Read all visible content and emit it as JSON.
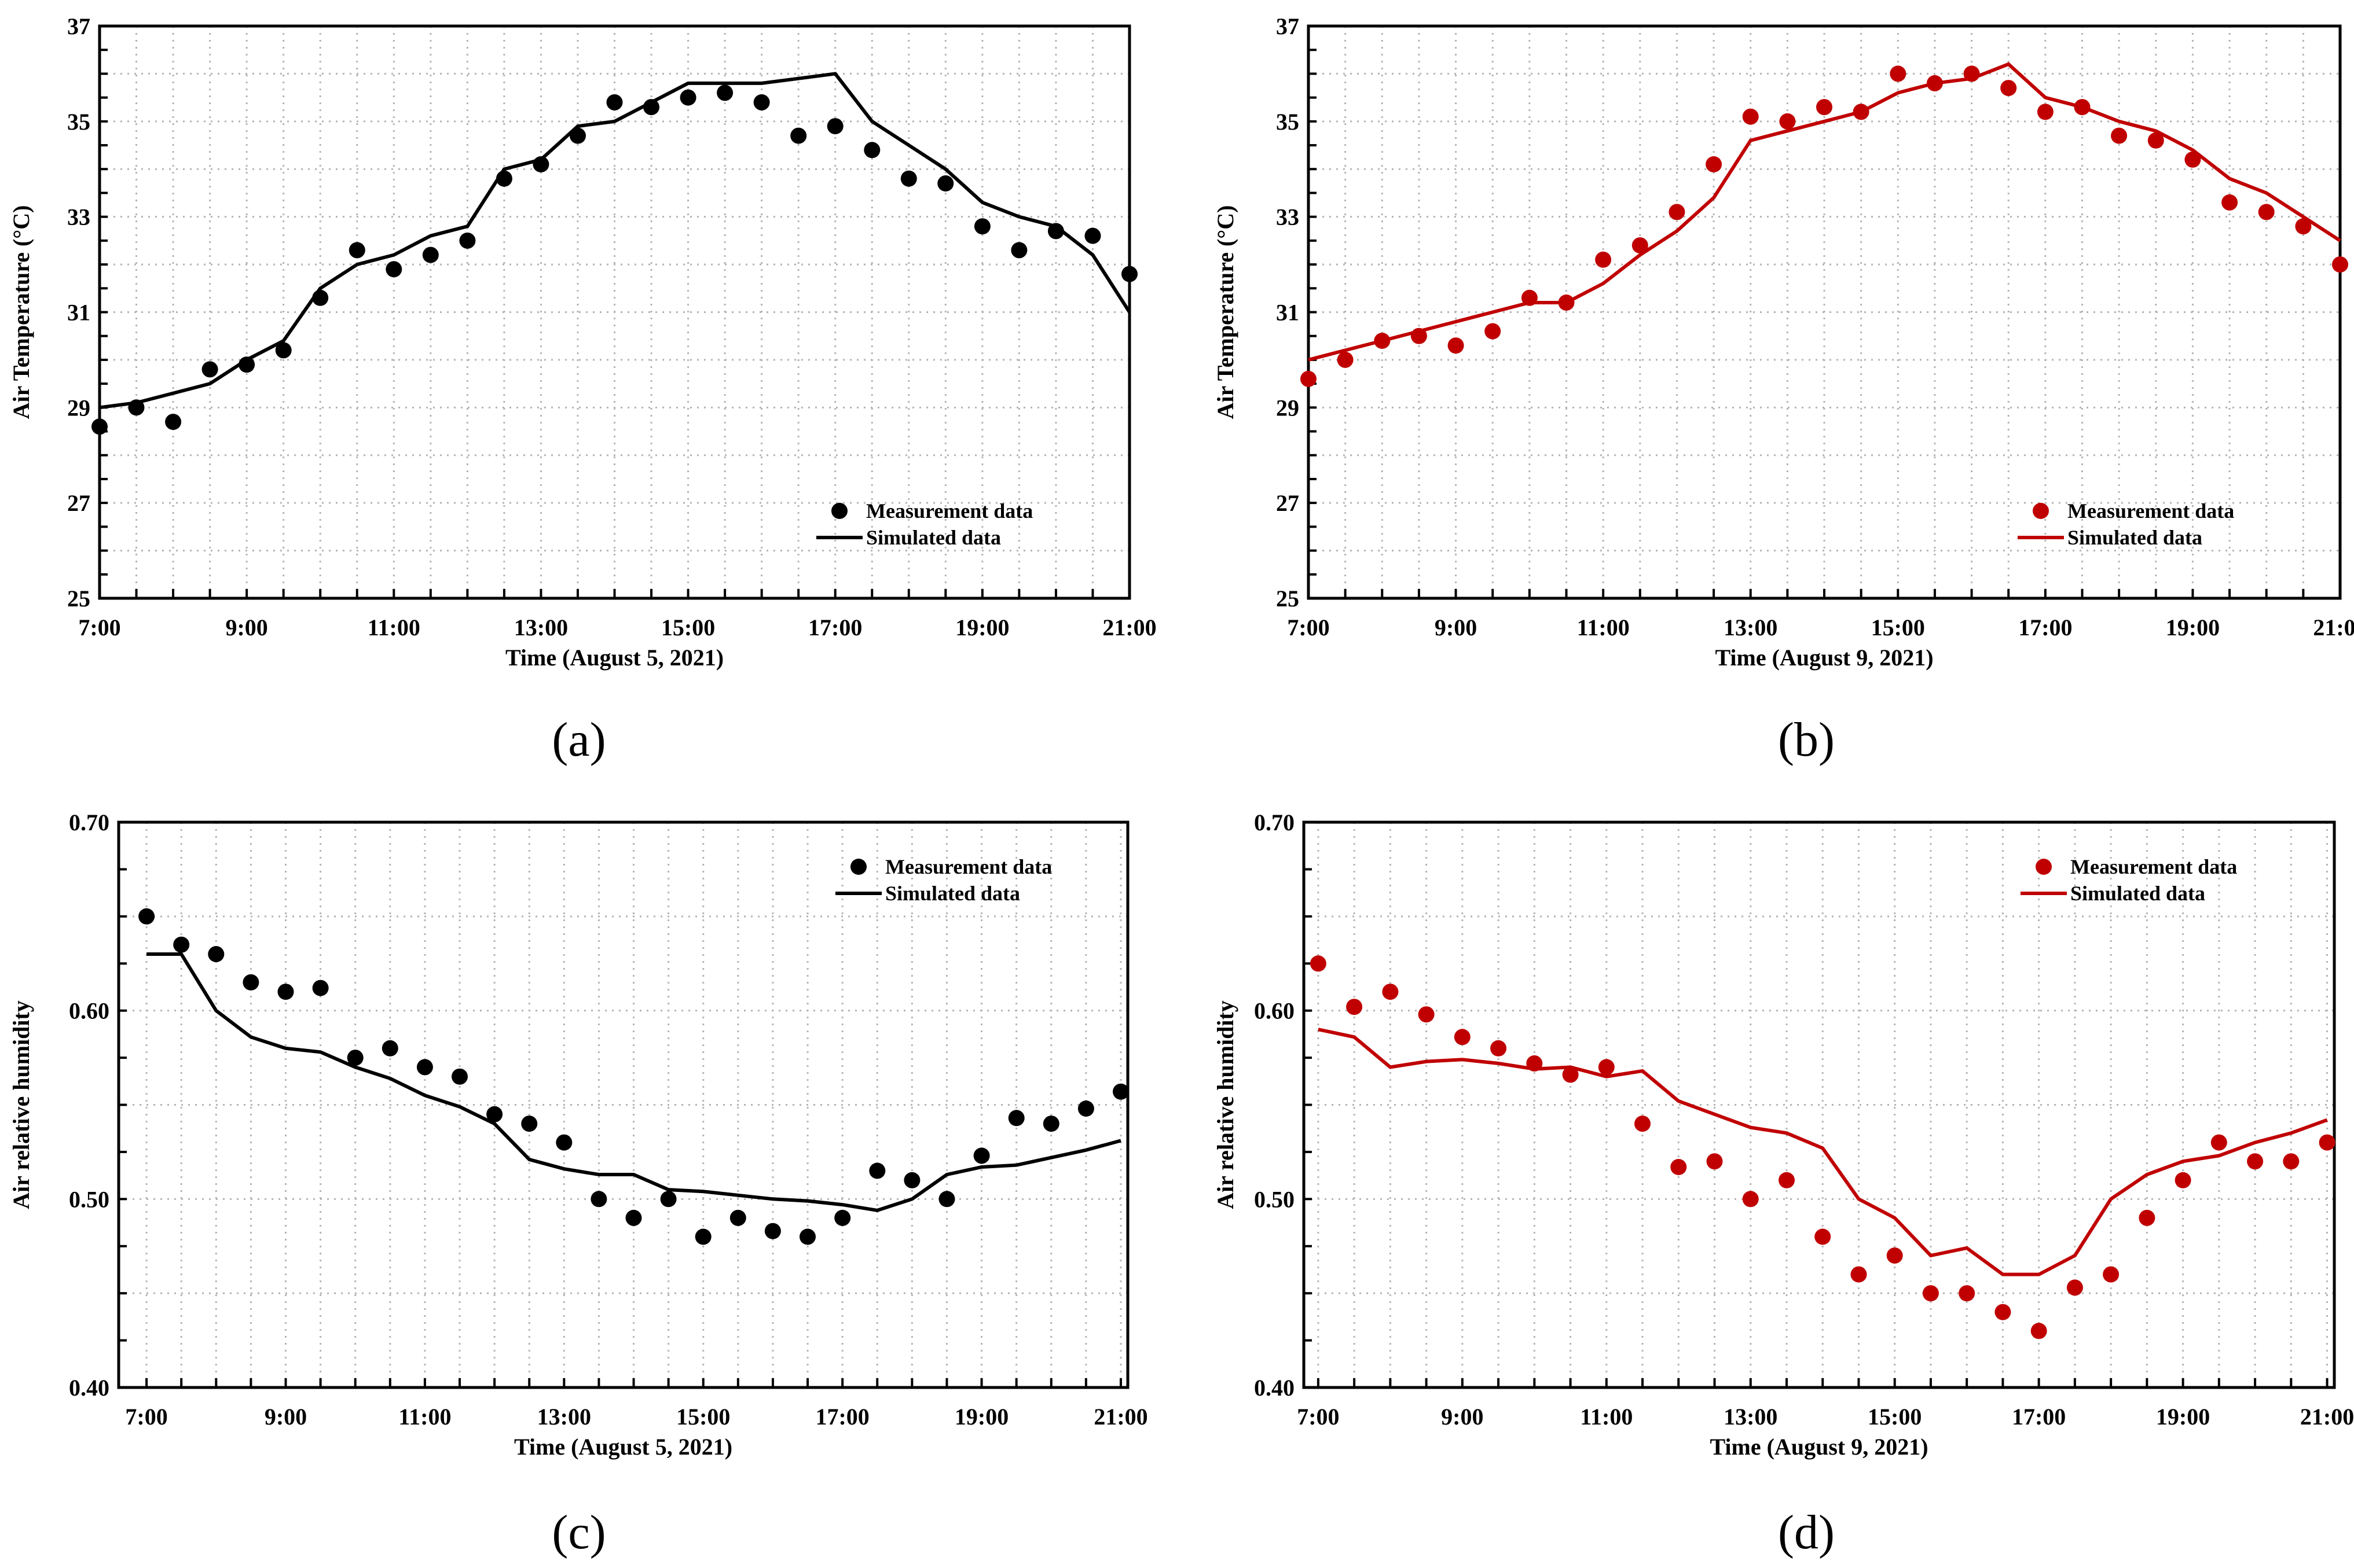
{
  "colors": {
    "black": "#000000",
    "red": "#c00000",
    "grid": "#b0b0b0"
  },
  "chart_data": [
    {
      "id": "a",
      "type": "line",
      "panel_label": "(a)",
      "xlabel": "Time (August 5, 2021)",
      "ylabel": "Air Temperature (°C)",
      "xlim": [
        7,
        21
      ],
      "ylim": [
        25,
        37
      ],
      "x_ticks": [
        7,
        9,
        11,
        13,
        15,
        17,
        19,
        21
      ],
      "x_tick_labels": [
        "7:00",
        "9:00",
        "11:00",
        "13:00",
        "15:00",
        "17:00",
        "19:00",
        "21:00"
      ],
      "y_ticks": [
        25,
        27,
        29,
        31,
        33,
        35,
        37
      ],
      "y_tick_labels": [
        "25",
        "27",
        "29",
        "31",
        "33",
        "35",
        "37"
      ],
      "grid": true,
      "legend_position": "bottom-right",
      "color": "#000000",
      "series": [
        {
          "name": "Measurement data",
          "kind": "scatter",
          "x": [
            7,
            7.5,
            8,
            8.5,
            9,
            9.5,
            10,
            10.5,
            11,
            11.5,
            12,
            12.5,
            13,
            13.5,
            14,
            14.5,
            15,
            15.5,
            16,
            16.5,
            17,
            17.5,
            18,
            18.5,
            19,
            19.5,
            20,
            20.5,
            21
          ],
          "values": [
            28.6,
            29.0,
            28.7,
            29.8,
            29.9,
            30.2,
            31.3,
            32.3,
            31.9,
            32.2,
            32.5,
            33.8,
            34.1,
            34.7,
            35.4,
            35.3,
            35.5,
            35.6,
            35.4,
            34.7,
            34.9,
            34.4,
            33.8,
            33.7,
            32.8,
            32.3,
            32.7,
            32.6,
            31.8
          ]
        },
        {
          "name": "Simulated data",
          "kind": "line",
          "x": [
            7,
            7.5,
            8,
            8.5,
            9,
            9.5,
            10,
            10.5,
            11,
            11.5,
            12,
            12.5,
            13,
            13.5,
            14,
            14.5,
            15,
            15.5,
            16,
            16.5,
            17,
            17.5,
            18,
            18.5,
            19,
            19.5,
            20,
            20.5,
            21
          ],
          "values": [
            29.0,
            29.1,
            29.3,
            29.5,
            30.0,
            30.4,
            31.5,
            32.0,
            32.2,
            32.6,
            32.8,
            34.0,
            34.2,
            34.9,
            35.0,
            35.4,
            35.8,
            35.8,
            35.8,
            35.9,
            36.0,
            35.0,
            34.5,
            34.0,
            33.3,
            33.0,
            32.8,
            32.2,
            31.0
          ]
        }
      ]
    },
    {
      "id": "b",
      "type": "line",
      "panel_label": "(b)",
      "xlabel": "Time (August 9, 2021)",
      "ylabel": "Air Temperature (°C)",
      "xlim": [
        7,
        21
      ],
      "ylim": [
        25,
        37
      ],
      "x_ticks": [
        7,
        9,
        11,
        13,
        15,
        17,
        19,
        21
      ],
      "x_tick_labels": [
        "7:00",
        "9:00",
        "11:00",
        "13:00",
        "15:00",
        "17:00",
        "19:00",
        "21:00"
      ],
      "y_ticks": [
        25,
        27,
        29,
        31,
        33,
        35,
        37
      ],
      "y_tick_labels": [
        "25",
        "27",
        "29",
        "31",
        "33",
        "35",
        "37"
      ],
      "grid": true,
      "legend_position": "bottom-right",
      "color": "#c00000",
      "series": [
        {
          "name": "Measurement data",
          "kind": "scatter",
          "x": [
            7,
            7.5,
            8,
            8.5,
            9,
            9.5,
            10,
            10.5,
            11,
            11.5,
            12,
            12.5,
            13,
            13.5,
            14,
            14.5,
            15,
            15.5,
            16,
            16.5,
            17,
            17.5,
            18,
            18.5,
            19,
            19.5,
            20,
            20.5,
            21
          ],
          "values": [
            29.6,
            30.0,
            30.4,
            30.5,
            30.3,
            30.6,
            31.3,
            31.2,
            32.1,
            32.4,
            33.1,
            34.1,
            35.1,
            35.0,
            35.3,
            35.2,
            36.0,
            35.8,
            36.0,
            35.7,
            35.2,
            35.3,
            34.7,
            34.6,
            34.2,
            33.3,
            33.1,
            32.8,
            32.0
          ]
        },
        {
          "name": "Simulated data",
          "kind": "line",
          "x": [
            7,
            7.5,
            8,
            8.5,
            9,
            9.5,
            10,
            10.5,
            11,
            11.5,
            12,
            12.5,
            13,
            13.5,
            14,
            14.5,
            15,
            15.5,
            16,
            16.5,
            17,
            17.5,
            18,
            18.5,
            19,
            19.5,
            20,
            20.5,
            21
          ],
          "values": [
            30.0,
            30.2,
            30.4,
            30.6,
            30.8,
            31.0,
            31.2,
            31.2,
            31.6,
            32.2,
            32.7,
            33.4,
            34.6,
            34.8,
            35.0,
            35.2,
            35.6,
            35.8,
            35.9,
            36.2,
            35.5,
            35.3,
            35.0,
            34.8,
            34.4,
            33.8,
            33.5,
            33.0,
            32.5
          ]
        }
      ]
    },
    {
      "id": "c",
      "type": "line",
      "panel_label": "(c)",
      "xlabel": "Time (August 5, 2021)",
      "ylabel": "Air relative humidity",
      "xlim": [
        6.6,
        21.1
      ],
      "ylim": [
        0.4,
        0.7
      ],
      "x_ticks": [
        7,
        9,
        11,
        13,
        15,
        17,
        19,
        21
      ],
      "x_tick_labels": [
        "7:00",
        "9:00",
        "11:00",
        "13:00",
        "15:00",
        "17:00",
        "19:00",
        "21:00"
      ],
      "y_ticks": [
        0.4,
        0.5,
        0.6,
        0.7
      ],
      "y_tick_labels": [
        "0.40",
        "0.50",
        "0.60",
        "0.70"
      ],
      "grid": true,
      "legend_position": "top-right",
      "color": "#000000",
      "series": [
        {
          "name": "Measurement data",
          "kind": "scatter",
          "x": [
            7,
            7.5,
            8,
            8.5,
            9,
            9.5,
            10,
            10.5,
            11,
            11.5,
            12,
            12.5,
            13,
            13.5,
            14,
            14.5,
            15,
            15.5,
            16,
            16.5,
            17,
            17.5,
            18,
            18.5,
            19,
            19.5,
            20,
            20.5,
            21
          ],
          "values": [
            0.65,
            0.635,
            0.63,
            0.615,
            0.61,
            0.612,
            0.575,
            0.58,
            0.57,
            0.565,
            0.545,
            0.54,
            0.53,
            0.5,
            0.49,
            0.5,
            0.48,
            0.49,
            0.483,
            0.48,
            0.49,
            0.515,
            0.51,
            0.5,
            0.523,
            0.543,
            0.54,
            0.548,
            0.557
          ]
        },
        {
          "name": "Simulated data",
          "kind": "line",
          "x": [
            7,
            7.5,
            8,
            8.5,
            9,
            9.5,
            10,
            10.5,
            11,
            11.5,
            12,
            12.5,
            13,
            13.5,
            14,
            14.5,
            15,
            15.5,
            16,
            16.5,
            17,
            17.5,
            18,
            18.5,
            19,
            19.5,
            20,
            20.5,
            21
          ],
          "values": [
            0.63,
            0.63,
            0.6,
            0.586,
            0.58,
            0.578,
            0.57,
            0.564,
            0.555,
            0.549,
            0.54,
            0.521,
            0.516,
            0.513,
            0.513,
            0.505,
            0.504,
            0.502,
            0.5,
            0.499,
            0.497,
            0.494,
            0.5,
            0.513,
            0.517,
            0.518,
            0.522,
            0.526,
            0.531
          ]
        }
      ]
    },
    {
      "id": "d",
      "type": "line",
      "panel_label": "(d)",
      "xlabel": "Time (August 9, 2021)",
      "ylabel": "Air relative humidity",
      "xlim": [
        6.8,
        21.1
      ],
      "ylim": [
        0.4,
        0.7
      ],
      "x_ticks": [
        7,
        9,
        11,
        13,
        15,
        17,
        19,
        21
      ],
      "x_tick_labels": [
        "7:00",
        "9:00",
        "11:00",
        "13:00",
        "15:00",
        "17:00",
        "19:00",
        "21:00"
      ],
      "y_ticks": [
        0.4,
        0.5,
        0.6,
        0.7
      ],
      "y_tick_labels": [
        "0.40",
        "0.50",
        "0.60",
        "0.70"
      ],
      "grid": true,
      "legend_position": "top-right",
      "color": "#c00000",
      "series": [
        {
          "name": "Measurement data",
          "kind": "scatter",
          "x": [
            7,
            7.5,
            8,
            8.5,
            9,
            9.5,
            10,
            10.5,
            11,
            11.5,
            12,
            12.5,
            13,
            13.5,
            14,
            14.5,
            15,
            15.5,
            16,
            16.5,
            17,
            17.5,
            18,
            18.5,
            19,
            19.5,
            20,
            20.5,
            21
          ],
          "values": [
            0.625,
            0.602,
            0.61,
            0.598,
            0.586,
            0.58,
            0.572,
            0.566,
            0.57,
            0.54,
            0.517,
            0.52,
            0.5,
            0.51,
            0.48,
            0.46,
            0.47,
            0.45,
            0.45,
            0.44,
            0.43,
            0.453,
            0.46,
            0.49,
            0.51,
            0.53,
            0.52,
            0.52,
            0.53
          ]
        },
        {
          "name": "Simulated data",
          "kind": "line",
          "x": [
            7,
            7.5,
            8,
            8.5,
            9,
            9.5,
            10,
            10.5,
            11,
            11.5,
            12,
            12.5,
            13,
            13.5,
            14,
            14.5,
            15,
            15.5,
            16,
            16.5,
            17,
            17.5,
            18,
            18.5,
            19,
            19.5,
            20,
            20.5,
            21
          ],
          "values": [
            0.59,
            0.586,
            0.57,
            0.573,
            0.574,
            0.572,
            0.569,
            0.57,
            0.565,
            0.568,
            0.552,
            0.545,
            0.538,
            0.535,
            0.527,
            0.5,
            0.49,
            0.47,
            0.474,
            0.46,
            0.46,
            0.47,
            0.5,
            0.513,
            0.52,
            0.523,
            0.53,
            0.535,
            0.542
          ]
        }
      ]
    }
  ]
}
